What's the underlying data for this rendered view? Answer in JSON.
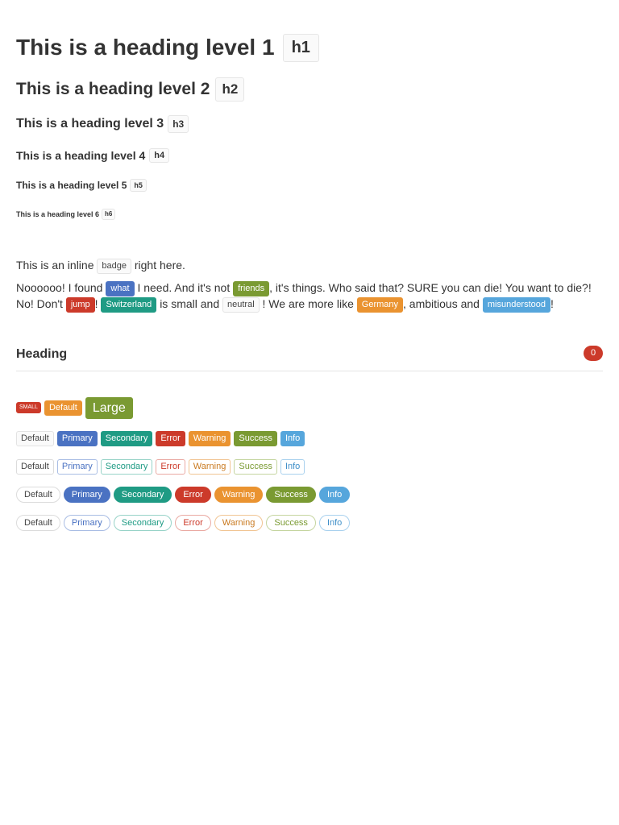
{
  "headings": [
    {
      "text": "This is a heading level 1",
      "badge": "h1"
    },
    {
      "text": "This is a heading level 2",
      "badge": "h2"
    },
    {
      "text": "This is a heading level 3",
      "badge": "h3"
    },
    {
      "text": "This is a heading level 4",
      "badge": "h4"
    },
    {
      "text": "This is a heading level 5",
      "badge": "h5"
    },
    {
      "text": "This is a heading level 6",
      "badge": "h6"
    }
  ],
  "inline_paragraph": {
    "before": "This is an inline",
    "badge": "badge",
    "after": "right here."
  },
  "long_paragraph": {
    "t1": "Noooooo! I found",
    "b1": "what",
    "t2": "I need. And it's not",
    "b2": "friends",
    "t3": ", it's things. Who said that? SURE you can die! You want to die?! No! Don't",
    "b3": "jump",
    "t4": "!",
    "b4": "Switzerland",
    "t5": "is small and",
    "b5": "neutral",
    "t6": "! We are more like",
    "b6": "Germany",
    "t7": ", ambitious and",
    "b7": "misunderstood",
    "t8": "!"
  },
  "section": {
    "title": "Heading",
    "count": "0"
  },
  "sizes": {
    "small": "SMALL",
    "default": "Default",
    "large": "Large"
  },
  "variants": {
    "default": "Default",
    "primary": "Primary",
    "secondary": "Secondary",
    "error": "Error",
    "warning": "Warning",
    "success": "Success",
    "info": "Info"
  },
  "colors": {
    "primary": "#4a72c2",
    "secondary": "#1f9b84",
    "error": "#cc3a2a",
    "warning": "#ea9330",
    "success": "#7a9a32",
    "info": "#56a6dc"
  }
}
